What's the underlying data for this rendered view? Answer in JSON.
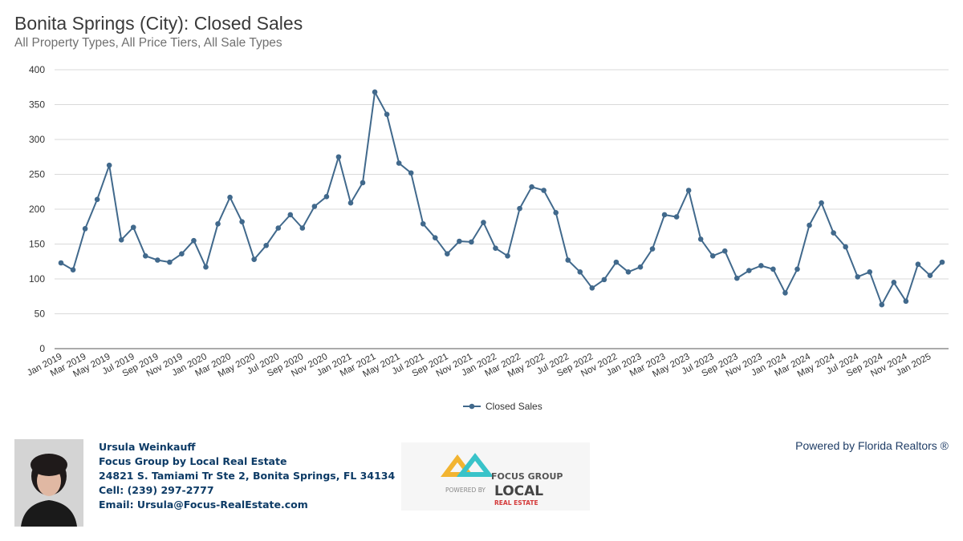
{
  "title": "Bonita Springs (City): Closed Sales",
  "subtitle": "All Property Types, All Price Tiers, All Sale Types",
  "chart_data": {
    "type": "line",
    "x": [
      "Jan 2019",
      "Feb 2019",
      "Mar 2019",
      "Apr 2019",
      "May 2019",
      "Jun 2019",
      "Jul 2019",
      "Aug 2019",
      "Sep 2019",
      "Oct 2019",
      "Nov 2019",
      "Dec 2019",
      "Jan 2020",
      "Feb 2020",
      "Mar 2020",
      "Apr 2020",
      "May 2020",
      "Jun 2020",
      "Jul 2020",
      "Aug 2020",
      "Sep 2020",
      "Oct 2020",
      "Nov 2020",
      "Dec 2020",
      "Jan 2021",
      "Feb 2021",
      "Mar 2021",
      "Apr 2021",
      "May 2021",
      "Jun 2021",
      "Jul 2021",
      "Aug 2021",
      "Sep 2021",
      "Oct 2021",
      "Nov 2021",
      "Dec 2021",
      "Jan 2022",
      "Feb 2022",
      "Mar 2022",
      "Apr 2022",
      "May 2022",
      "Jun 2022",
      "Jul 2022",
      "Aug 2022",
      "Sep 2022",
      "Oct 2022",
      "Nov 2022",
      "Dec 2022",
      "Jan 2023",
      "Feb 2023",
      "Mar 2023",
      "Apr 2023",
      "May 2023",
      "Jun 2023",
      "Jul 2023",
      "Aug 2023",
      "Sep 2023",
      "Oct 2023",
      "Nov 2023",
      "Dec 2023",
      "Jan 2024",
      "Feb 2024",
      "Mar 2024",
      "Apr 2024",
      "May 2024",
      "Jun 2024",
      "Jul 2024",
      "Aug 2024",
      "Sep 2024",
      "Oct 2024",
      "Nov 2024",
      "Dec 2024",
      "Jan 2025",
      "Feb 2025"
    ],
    "tick_labels": [
      "Jan 2019",
      "Mar 2019",
      "May 2019",
      "Jul 2019",
      "Sep 2019",
      "Nov 2019",
      "Jan 2020",
      "Mar 2020",
      "May 2020",
      "Jul 2020",
      "Sep 2020",
      "Nov 2020",
      "Jan 2021",
      "Mar 2021",
      "May 2021",
      "Jul 2021",
      "Sep 2021",
      "Nov 2021",
      "Jan 2022",
      "Mar 2022",
      "May 2022",
      "Jul 2022",
      "Sep 2022",
      "Nov 2022",
      "Jan 2023",
      "Mar 2023",
      "May 2023",
      "Jul 2023",
      "Sep 2023",
      "Nov 2023",
      "Jan 2024",
      "Mar 2024",
      "May 2024",
      "Jul 2024",
      "Sep 2024",
      "Nov 2024",
      "Jan 2025"
    ],
    "series": [
      {
        "name": "Closed Sales",
        "color": "#41698c",
        "values": [
          123,
          113,
          172,
          214,
          263,
          156,
          174,
          133,
          127,
          124,
          136,
          155,
          117,
          179,
          217,
          182,
          128,
          148,
          173,
          192,
          173,
          204,
          218,
          275,
          209,
          238,
          368,
          336,
          266,
          252,
          179,
          159,
          136,
          154,
          153,
          181,
          144,
          133,
          201,
          232,
          227,
          195,
          127,
          110,
          87,
          99,
          124,
          110,
          117,
          143,
          192,
          189,
          227,
          157,
          133,
          140,
          101,
          112,
          119,
          114,
          80,
          114,
          177,
          209,
          166,
          146,
          103,
          110,
          63,
          95,
          68,
          121,
          105,
          124
        ]
      }
    ],
    "yticks": [
      0,
      50,
      100,
      150,
      200,
      250,
      300,
      350,
      400
    ],
    "ylim": [
      0,
      400
    ],
    "grid": true,
    "legend": "bottom-center"
  },
  "footer": {
    "agent_name": "Ursula Weinkauff",
    "company": "Focus Group by Local Real Estate",
    "address": "24821 S. Tamiami Tr Ste 2, Bonita Springs, FL 34134",
    "cell": "Cell: (239) 297-2777",
    "email": "Email: Ursula@Focus-RealEstate.com",
    "powered_by": "Powered by Florida Realtors ®",
    "logo": {
      "line1": "FOCUS GROUP",
      "line2": "POWERED BY",
      "line3": "LOCAL",
      "line4": "REAL ESTATE"
    }
  }
}
